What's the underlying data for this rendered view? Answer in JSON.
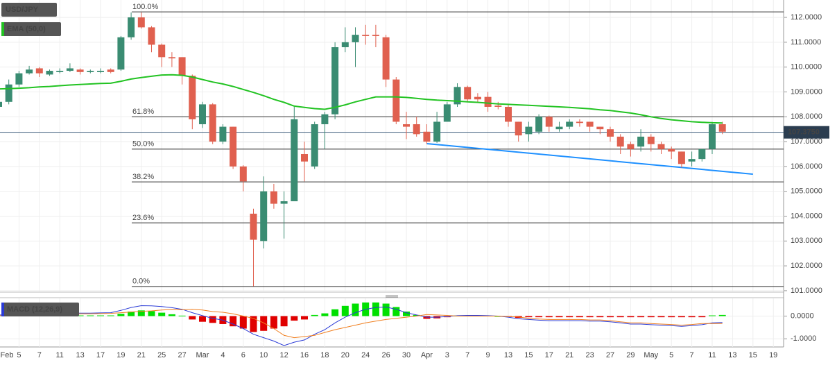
{
  "chart_data": [
    {
      "type": "candlestick",
      "title": "USD/JPY",
      "categories": [
        "Feb",
        null,
        "5",
        null,
        "7",
        null,
        "11",
        null,
        "13",
        null,
        "17",
        null,
        "19",
        null,
        "21",
        null,
        "25",
        null,
        "27",
        null,
        "Mar",
        null,
        "4",
        null,
        "6",
        null,
        "10",
        null,
        "12",
        null,
        "16",
        null,
        "18",
        null,
        "20",
        null,
        "24",
        null,
        "26",
        null,
        "30",
        null,
        "Apr",
        null,
        "3",
        null,
        "7",
        null,
        "9",
        null,
        "13",
        null,
        "15",
        null,
        "17",
        null,
        "21",
        null,
        "23",
        null,
        "27",
        null,
        "29",
        null,
        "May",
        null,
        "5",
        null,
        "7",
        null,
        "11",
        null,
        "13",
        null,
        "15",
        null,
        "19"
      ],
      "series": [
        {
          "name": "USD/JPY",
          "up_color": "#3a8c72",
          "down_color": "#e0604f",
          "open": [
            108.4,
            108.6,
            109.3,
            109.75,
            109.95,
            109.7,
            109.8,
            109.85,
            109.9,
            109.8,
            109.8,
            109.9,
            109.9,
            111.2,
            112.0,
            111.6,
            110.9,
            110.4,
            110.4,
            109.65,
            107.7,
            108.5,
            107.0,
            107.6,
            106.0,
            104.1,
            103.0,
            105.0,
            104.5,
            104.6,
            106.5,
            106.0,
            107.7,
            108.1,
            110.8,
            111.0,
            111.3,
            111.3,
            111.2,
            109.5,
            107.7,
            107.7,
            107.4,
            107.0,
            107.8,
            108.5,
            109.2,
            108.8,
            108.8,
            108.45,
            108.4,
            107.8,
            107.3,
            107.4,
            108.0,
            107.5,
            107.6,
            107.8,
            107.8,
            107.6,
            107.5,
            107.2,
            106.9,
            106.8,
            107.2,
            106.9,
            106.7,
            106.6,
            106.2,
            106.3,
            106.7,
            107.7,
            null,
            null,
            null,
            null,
            null
          ],
          "high": [
            108.7,
            109.5,
            109.85,
            110.05,
            110.0,
            109.9,
            109.95,
            110.15,
            109.95,
            109.9,
            109.95,
            109.95,
            111.25,
            112.2,
            112.2,
            111.65,
            110.95,
            110.6,
            110.4,
            109.7,
            108.6,
            108.55,
            107.7,
            107.6,
            106.05,
            104.3,
            105.6,
            105.3,
            105.0,
            108.4,
            107.0,
            107.8,
            108.2,
            111.0,
            111.6,
            111.6,
            111.7,
            111.7,
            111.3,
            109.6,
            108.2,
            108.0,
            107.7,
            108.2,
            108.6,
            109.35,
            109.25,
            108.95,
            109.0,
            108.6,
            108.5,
            107.8,
            107.8,
            108.1,
            108.05,
            107.8,
            107.9,
            107.9,
            107.8,
            107.6,
            107.6,
            107.3,
            107.0,
            107.5,
            107.3,
            107.0,
            106.8,
            106.6,
            106.6,
            106.7,
            107.8,
            107.8,
            null,
            null,
            null,
            null,
            null
          ],
          "low": [
            108.3,
            108.5,
            109.2,
            109.7,
            109.6,
            109.65,
            109.75,
            109.8,
            109.7,
            109.75,
            109.75,
            109.75,
            109.85,
            111.1,
            111.55,
            110.6,
            110.0,
            110.0,
            109.3,
            107.5,
            107.55,
            106.9,
            106.9,
            105.9,
            105.0,
            101.18,
            102.7,
            104.3,
            103.1,
            104.6,
            105.4,
            105.9,
            106.7,
            107.9,
            110.6,
            110.0,
            110.9,
            110.8,
            109.2,
            107.7,
            107.1,
            107.2,
            106.9,
            106.95,
            107.8,
            108.4,
            108.6,
            108.6,
            108.2,
            108.3,
            107.6,
            107.0,
            107.0,
            107.3,
            107.4,
            107.4,
            107.5,
            107.6,
            107.4,
            107.3,
            107.0,
            106.5,
            106.4,
            106.6,
            106.6,
            106.5,
            106.3,
            105.95,
            106.0,
            106.2,
            106.5,
            107.3,
            null,
            null,
            null,
            null,
            null
          ],
          "close": [
            108.6,
            109.3,
            109.75,
            109.9,
            109.75,
            109.85,
            109.85,
            109.95,
            109.8,
            109.85,
            109.85,
            109.8,
            111.2,
            112.0,
            111.6,
            110.9,
            110.4,
            110.35,
            109.65,
            107.9,
            108.5,
            107.0,
            107.6,
            106.0,
            105.4,
            103.05,
            105.0,
            104.5,
            104.6,
            107.9,
            106.2,
            107.7,
            108.1,
            110.8,
            111.0,
            111.3,
            111.25,
            111.25,
            109.5,
            107.8,
            107.6,
            107.3,
            107.0,
            107.8,
            108.5,
            109.2,
            108.7,
            108.7,
            108.4,
            108.4,
            107.8,
            107.25,
            107.6,
            108.0,
            107.6,
            107.6,
            107.8,
            107.75,
            107.6,
            107.5,
            107.2,
            106.8,
            106.7,
            107.2,
            106.9,
            106.7,
            106.6,
            106.1,
            106.3,
            106.7,
            107.7,
            107.4,
            null,
            null,
            null,
            null,
            null
          ]
        }
      ],
      "overlays": [
        {
          "name": "EMA (50,0)",
          "color": "#22c322",
          "values": [
            109.12,
            109.13,
            109.15,
            109.17,
            109.2,
            109.22,
            109.25,
            109.28,
            109.3,
            109.32,
            109.34,
            109.35,
            109.43,
            109.52,
            109.58,
            109.63,
            109.68,
            109.69,
            109.67,
            109.6,
            109.5,
            109.4,
            109.32,
            109.22,
            109.1,
            108.98,
            108.85,
            108.7,
            108.58,
            108.43,
            108.38,
            108.33,
            108.3,
            108.38,
            108.48,
            108.6,
            108.7,
            108.8,
            108.8,
            108.8,
            108.78,
            108.74,
            108.7,
            108.67,
            108.65,
            108.63,
            108.6,
            108.58,
            108.55,
            108.52,
            108.5,
            108.48,
            108.46,
            108.44,
            108.42,
            108.4,
            108.38,
            108.35,
            108.32,
            108.28,
            108.25,
            108.2,
            108.15,
            108.08,
            108.0,
            107.93,
            107.88,
            107.84,
            107.8,
            107.78,
            107.76,
            107.75,
            null,
            null,
            null,
            null,
            null
          ]
        }
      ],
      "fib_levels": [
        {
          "label": "100.0%",
          "price": 112.22
        },
        {
          "label": "61.8%",
          "price": 108.0
        },
        {
          "label": "50.0%",
          "price": 106.7
        },
        {
          "label": "38.2%",
          "price": 105.38
        },
        {
          "label": "23.6%",
          "price": 103.73
        },
        {
          "label": "0.0%",
          "price": 101.17
        }
      ],
      "trendline": {
        "start": "Apr",
        "end": "15",
        "values": [
          106.92,
          105.69
        ],
        "color": "#1e90ff"
      },
      "current_price": {
        "value": 107.375,
        "label": "107.3750"
      },
      "ylim": [
        100.97,
        112.7
      ],
      "yticks": [
        {
          "value": 101,
          "label": "101.0000"
        },
        {
          "value": 102,
          "label": "102.0000"
        },
        {
          "value": 103,
          "label": "103.0000"
        },
        {
          "value": 104,
          "label": "104.0000"
        },
        {
          "value": 105,
          "label": "105.0000"
        },
        {
          "value": 106,
          "label": "106.0000"
        },
        {
          "value": 107,
          "label": "107.0000"
        },
        {
          "value": 108,
          "label": "108.0000"
        },
        {
          "value": 109,
          "label": "109.0000"
        },
        {
          "value": 110,
          "label": "110.0000"
        },
        {
          "value": 111,
          "label": "111.0000"
        },
        {
          "value": 112,
          "label": "112.0000"
        }
      ],
      "grid": true
    },
    {
      "type": "macd",
      "title": "MACD (12,26,9)",
      "histogram": {
        "positive_color": "#00e000",
        "negative_color": "#e00000",
        "values": [
          0.03,
          0.03,
          0.03,
          0.03,
          0.03,
          0.03,
          0.03,
          0.03,
          0.03,
          0.03,
          0.03,
          0.03,
          0.1,
          0.2,
          0.25,
          0.22,
          0.15,
          0.08,
          0.02,
          -0.15,
          -0.25,
          -0.3,
          -0.35,
          -0.45,
          -0.55,
          -0.7,
          -0.65,
          -0.55,
          -0.45,
          -0.2,
          -0.15,
          0.05,
          0.12,
          0.3,
          0.45,
          0.55,
          0.6,
          0.6,
          0.55,
          0.4,
          0.2,
          0.05,
          -0.12,
          -0.1,
          -0.05,
          0.02,
          0.03,
          0.03,
          0.02,
          0.0,
          -0.03,
          -0.08,
          -0.05,
          -0.05,
          -0.05,
          -0.05,
          -0.05,
          -0.05,
          -0.05,
          -0.05,
          -0.05,
          -0.05,
          -0.05,
          -0.05,
          -0.05,
          -0.05,
          -0.05,
          -0.05,
          -0.05,
          -0.05,
          0.03,
          0.05,
          null,
          null,
          null,
          null,
          null
        ]
      },
      "series": [
        {
          "name": "MACD",
          "color": "#2b3bd6",
          "values": [
            0.05,
            0.06,
            0.08,
            0.1,
            0.11,
            0.12,
            0.12,
            0.13,
            0.13,
            0.13,
            0.14,
            0.15,
            0.25,
            0.38,
            0.46,
            0.45,
            0.42,
            0.37,
            0.3,
            0.15,
            0.02,
            -0.1,
            -0.18,
            -0.35,
            -0.55,
            -0.8,
            -0.95,
            -1.1,
            -1.3,
            -1.15,
            -1.05,
            -0.8,
            -0.6,
            -0.3,
            -0.05,
            0.15,
            0.3,
            0.38,
            0.4,
            0.3,
            0.15,
            0.05,
            -0.05,
            -0.05,
            -0.02,
            0.02,
            0.03,
            0.03,
            0.02,
            0.0,
            -0.05,
            -0.12,
            -0.15,
            -0.18,
            -0.2,
            -0.2,
            -0.2,
            -0.2,
            -0.22,
            -0.22,
            -0.25,
            -0.3,
            -0.35,
            -0.35,
            -0.38,
            -0.4,
            -0.42,
            -0.45,
            -0.42,
            -0.38,
            -0.3,
            -0.28,
            null,
            null,
            null,
            null,
            null
          ]
        },
        {
          "name": "Signal",
          "color": "#f07f1f",
          "values": [
            0.02,
            0.03,
            0.05,
            0.07,
            0.08,
            0.09,
            0.09,
            0.1,
            0.1,
            0.1,
            0.11,
            0.12,
            0.15,
            0.18,
            0.21,
            0.23,
            0.27,
            0.29,
            0.28,
            0.3,
            0.27,
            0.2,
            0.17,
            0.1,
            0.0,
            -0.1,
            -0.3,
            -0.55,
            -0.85,
            -0.95,
            -0.9,
            -0.85,
            -0.72,
            -0.6,
            -0.5,
            -0.4,
            -0.3,
            -0.22,
            -0.15,
            -0.1,
            -0.05,
            0.0,
            0.07,
            0.05,
            0.03,
            0.0,
            0.0,
            0.0,
            0.0,
            0.0,
            -0.02,
            -0.04,
            -0.1,
            -0.13,
            -0.15,
            -0.15,
            -0.15,
            -0.15,
            -0.17,
            -0.17,
            -0.2,
            -0.25,
            -0.3,
            -0.3,
            -0.33,
            -0.35,
            -0.37,
            -0.4,
            -0.37,
            -0.33,
            -0.33,
            -0.33,
            null,
            null,
            null,
            null,
            null
          ]
        }
      ],
      "ylim": [
        -1.36,
        0.78
      ],
      "yticks": [
        {
          "value": 0,
          "label": "0.0000"
        },
        {
          "value": -1,
          "label": "-1.0000"
        }
      ]
    }
  ]
}
